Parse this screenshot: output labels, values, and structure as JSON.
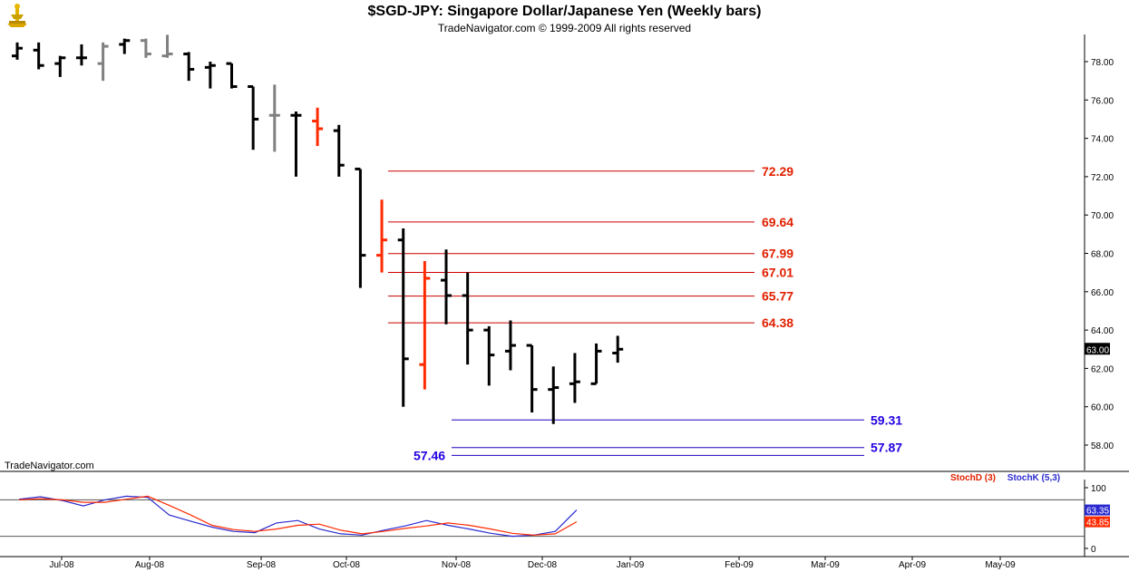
{
  "header": {
    "title": "$SGD-JPY:  Singapore Dollar/Japanese Yen  (Weekly bars)",
    "subtitle": "TradeNavigator.com © 1999-2009 All rights reserved",
    "watermark": "TradeNavigator.com",
    "logo_icon": "ship-wheel-icon"
  },
  "colors": {
    "up_bar": "#000000",
    "gray_bar": "#808080",
    "red_bar": "#ff2a00",
    "fib_line": "#cc0000",
    "fib_label": "#e02000",
    "support_line": "#2000c0",
    "support_label": "#2000e0",
    "stochD": "#ff2a00",
    "stochK": "#2a2ad0",
    "last_price_bg": "#000000"
  },
  "chart_data": [
    {
      "type": "ohlc",
      "title": "$SGD-JPY:  Singapore Dollar/Japanese Yen  (Weekly bars)",
      "x_ticks": [
        "Jul-08",
        "Aug-08",
        "Sep-08",
        "Oct-08",
        "Nov-08",
        "Dec-08",
        "Jan-09",
        "Feb-09",
        "Mar-09",
        "Apr-09",
        "May-09"
      ],
      "y_ticks": [
        "58.00",
        "60.00",
        "62.00",
        "64.00",
        "66.00",
        "68.00",
        "70.00",
        "72.00",
        "74.00",
        "76.00",
        "78.00"
      ],
      "ylim": [
        57,
        79.6
      ],
      "grid": false,
      "last_price": "63.00",
      "bars": [
        {
          "o": 78.3,
          "h": 79.0,
          "l": 78.1,
          "c": 78.7,
          "color": "black"
        },
        {
          "o": 78.6,
          "h": 79.0,
          "l": 77.6,
          "c": 77.8,
          "color": "black"
        },
        {
          "o": 77.9,
          "h": 78.3,
          "l": 77.2,
          "c": 78.2,
          "color": "black"
        },
        {
          "o": 78.2,
          "h": 78.9,
          "l": 77.8,
          "c": 78.2,
          "color": "black"
        },
        {
          "o": 77.9,
          "h": 79.0,
          "l": 77.0,
          "c": 78.8,
          "color": "gray"
        },
        {
          "o": 78.9,
          "h": 79.2,
          "l": 78.4,
          "c": 79.1,
          "color": "black"
        },
        {
          "o": 79.1,
          "h": 79.2,
          "l": 78.2,
          "c": 78.4,
          "color": "gray"
        },
        {
          "o": 78.3,
          "h": 79.4,
          "l": 78.2,
          "c": 78.4,
          "color": "gray"
        },
        {
          "o": 78.4,
          "h": 78.5,
          "l": 77.0,
          "c": 77.6,
          "color": "black"
        },
        {
          "o": 77.7,
          "h": 78.0,
          "l": 76.6,
          "c": 77.8,
          "color": "black"
        },
        {
          "o": 77.9,
          "h": 77.9,
          "l": 76.6,
          "c": 76.7,
          "color": "black"
        },
        {
          "o": 76.7,
          "h": 76.7,
          "l": 73.4,
          "c": 75.0,
          "color": "black"
        },
        {
          "o": 75.2,
          "h": 76.8,
          "l": 73.3,
          "c": 75.2,
          "color": "gray"
        },
        {
          "o": 75.2,
          "h": 75.4,
          "l": 72.0,
          "c": 75.2,
          "color": "black"
        },
        {
          "o": 74.9,
          "h": 75.6,
          "l": 73.6,
          "c": 74.5,
          "color": "red"
        },
        {
          "o": 74.4,
          "h": 74.7,
          "l": 72.0,
          "c": 72.6,
          "color": "black"
        },
        {
          "o": 72.4,
          "h": 72.4,
          "l": 66.2,
          "c": 67.9,
          "color": "black"
        },
        {
          "o": 67.9,
          "h": 70.8,
          "l": 67.0,
          "c": 68.7,
          "color": "red"
        },
        {
          "o": 68.7,
          "h": 69.3,
          "l": 60.0,
          "c": 62.5,
          "color": "black"
        },
        {
          "o": 62.2,
          "h": 67.6,
          "l": 60.9,
          "c": 66.7,
          "color": "red"
        },
        {
          "o": 66.6,
          "h": 68.2,
          "l": 64.3,
          "c": 65.8,
          "color": "black"
        },
        {
          "o": 65.8,
          "h": 67.0,
          "l": 62.2,
          "c": 64.0,
          "color": "black"
        },
        {
          "o": 64.0,
          "h": 64.2,
          "l": 61.1,
          "c": 62.7,
          "color": "black"
        },
        {
          "o": 62.9,
          "h": 64.5,
          "l": 61.9,
          "c": 63.2,
          "color": "black"
        },
        {
          "o": 63.2,
          "h": 63.2,
          "l": 59.7,
          "c": 60.9,
          "color": "black"
        },
        {
          "o": 60.9,
          "h": 62.1,
          "l": 59.1,
          "c": 61.0,
          "color": "black"
        },
        {
          "o": 61.2,
          "h": 62.8,
          "l": 60.2,
          "c": 61.3,
          "color": "black"
        },
        {
          "o": 61.2,
          "h": 63.3,
          "l": 61.2,
          "c": 62.9,
          "color": "black"
        },
        {
          "o": 62.8,
          "h": 63.7,
          "l": 62.3,
          "c": 63.0,
          "color": "black"
        }
      ],
      "fib_levels": [
        {
          "label": "72.29",
          "value": 72.29
        },
        {
          "label": "69.64",
          "value": 69.64
        },
        {
          "label": "67.99",
          "value": 67.99
        },
        {
          "label": "67.01",
          "value": 67.01
        },
        {
          "label": "65.77",
          "value": 65.77
        },
        {
          "label": "64.38",
          "value": 64.38
        }
      ],
      "support_levels": [
        {
          "label": "59.31",
          "value": 59.31,
          "label_side": "right"
        },
        {
          "label": "57.87",
          "value": 57.87,
          "label_side": "right"
        },
        {
          "label": "57.46",
          "value": 57.46,
          "label_side": "left"
        }
      ]
    },
    {
      "type": "line",
      "legend": [
        "StochD (3)",
        "StochK (5,3)"
      ],
      "y_ticks": [
        "0",
        "100"
      ],
      "ylim": [
        0,
        100
      ],
      "hlines": [
        80,
        20
      ],
      "last_values": {
        "stochK": "63.35",
        "stochD": "43.85"
      },
      "series": [
        {
          "name": "StochK (5,3)",
          "values": [
            81,
            85,
            79,
            70,
            80,
            86,
            84,
            55,
            45,
            35,
            28,
            26,
            42,
            46,
            32,
            24,
            22,
            30,
            37,
            46,
            38,
            32,
            25,
            20,
            22,
            28,
            63.35
          ]
        },
        {
          "name": "StochD (3)",
          "values": [
            80,
            82,
            80,
            76,
            76,
            81,
            86,
            71,
            55,
            38,
            31,
            28,
            32,
            38,
            40,
            30,
            24,
            28,
            33,
            37,
            42,
            38,
            32,
            25,
            22,
            24,
            43.85
          ]
        }
      ]
    }
  ]
}
